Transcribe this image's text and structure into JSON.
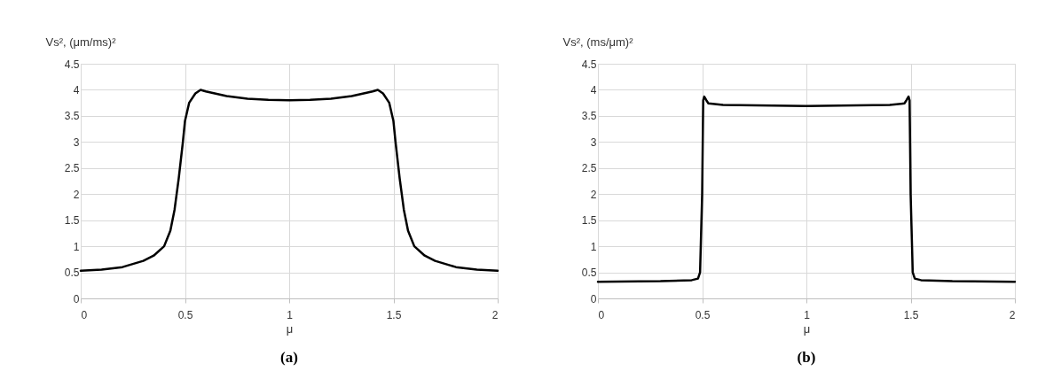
{
  "chart_data": [
    {
      "type": "line",
      "title": "(a)",
      "xlabel": "μ",
      "ylabel": "Vs², (μm/ms)²",
      "xlim": [
        0,
        2
      ],
      "xticks": [
        0,
        0.5,
        1,
        1.5,
        2
      ],
      "ylim": [
        0,
        4.5
      ],
      "yticks": [
        0,
        0.5,
        1,
        1.5,
        2,
        2.5,
        3,
        3.5,
        4,
        4.5
      ],
      "grid": true,
      "marker": "none",
      "line_style": "solid",
      "series": [
        {
          "color": "#000000",
          "x": [
            0,
            0.1,
            0.2,
            0.3,
            0.35,
            0.4,
            0.43,
            0.45,
            0.47,
            0.49,
            0.5,
            0.52,
            0.55,
            0.575,
            0.6,
            0.7,
            0.8,
            0.9,
            1.0,
            1.1,
            1.2,
            1.3,
            1.4,
            1.425,
            1.45,
            1.48,
            1.5,
            1.51,
            1.53,
            1.55,
            1.57,
            1.6,
            1.65,
            1.7,
            1.8,
            1.9,
            2
          ],
          "values": [
            0.53,
            0.55,
            0.6,
            0.72,
            0.82,
            1.0,
            1.3,
            1.7,
            2.3,
            3.0,
            3.4,
            3.75,
            3.93,
            4.0,
            3.97,
            3.88,
            3.83,
            3.81,
            3.8,
            3.81,
            3.83,
            3.88,
            3.97,
            4.0,
            3.93,
            3.75,
            3.4,
            3.0,
            2.3,
            1.7,
            1.3,
            1.0,
            0.82,
            0.72,
            0.6,
            0.55,
            0.53
          ]
        }
      ]
    },
    {
      "type": "line",
      "title": "(b)",
      "xlabel": "μ",
      "ylabel": "Vs², (ms/μm)²",
      "xlim": [
        0,
        2
      ],
      "xticks": [
        0,
        0.5,
        1,
        1.5,
        2
      ],
      "ylim": [
        0,
        4.5
      ],
      "yticks": [
        0,
        0.5,
        1,
        1.5,
        2,
        2.5,
        3,
        3.5,
        4,
        4.5
      ],
      "grid": true,
      "marker": "none",
      "line_style": "solid",
      "series": [
        {
          "color": "#000000",
          "x": [
            0,
            0.3,
            0.45,
            0.48,
            0.49,
            0.5,
            0.505,
            0.51,
            0.52,
            0.53,
            0.6,
            1.0,
            1.4,
            1.47,
            1.48,
            1.49,
            1.495,
            1.5,
            1.51,
            1.52,
            1.55,
            1.7,
            2
          ],
          "values": [
            0.32,
            0.33,
            0.35,
            0.38,
            0.5,
            2.0,
            3.8,
            3.87,
            3.8,
            3.74,
            3.71,
            3.69,
            3.71,
            3.74,
            3.8,
            3.87,
            3.8,
            2.0,
            0.5,
            0.38,
            0.35,
            0.33,
            0.32
          ]
        }
      ]
    }
  ]
}
